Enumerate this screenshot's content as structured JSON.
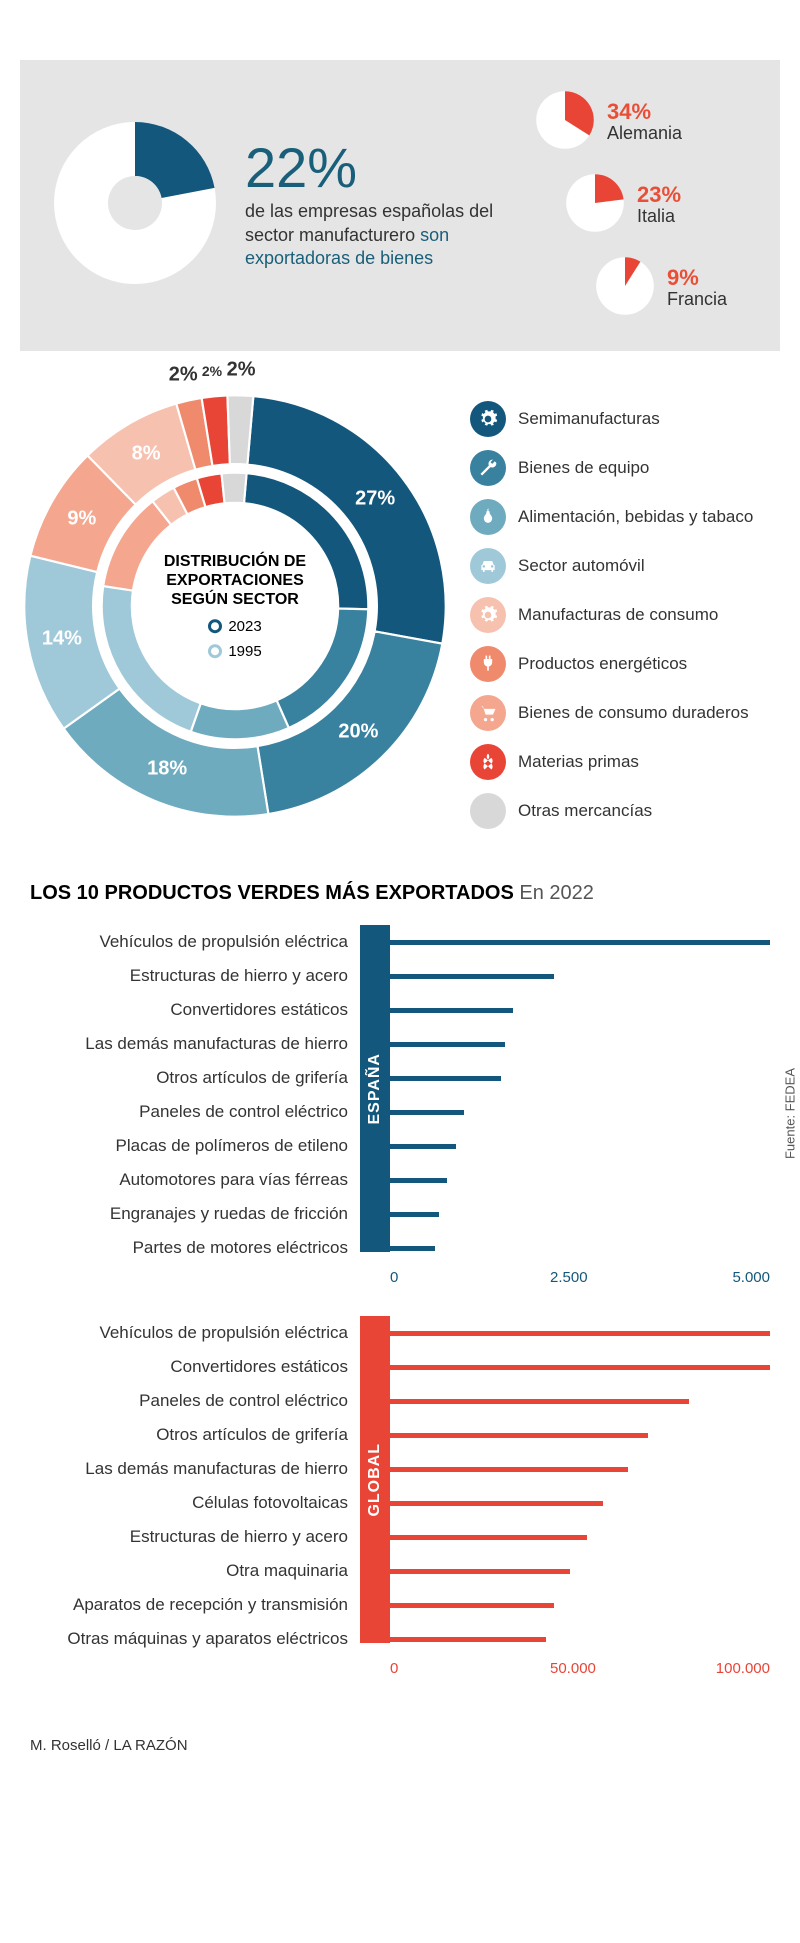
{
  "top": {
    "main_pct_value": 22,
    "main_pct_label": "22%",
    "main_text_pre": "de las empresas españolas del sector manufacturero ",
    "main_text_accent": "son exportadoras de bienes",
    "main_donut": {
      "value": 22,
      "fill": "#13587c",
      "bg": "#ffffff"
    },
    "countries": [
      {
        "pct_label": "34%",
        "value": 34,
        "name": "Alemania"
      },
      {
        "pct_label": "23%",
        "value": 23,
        "name": "Italia"
      },
      {
        "pct_label": "9%",
        "value": 9,
        "name": "Francia"
      }
    ],
    "country_fill": "#e94537",
    "country_bg": "#ffffff",
    "panel_bg": "#e5e5e5"
  },
  "donut": {
    "center_title": "DISTRIBUCIÓN DE EXPORTACIONES SEGÚN SECTOR",
    "year_outer": "2023",
    "year_inner": "1995",
    "year_outer_color": "#13587c",
    "year_inner_color": "#9fc9d9",
    "outer": [
      {
        "label": "27%",
        "value": 27,
        "color": "#13587c"
      },
      {
        "label": "20%",
        "value": 20,
        "color": "#39829f"
      },
      {
        "label": "18%",
        "value": 18,
        "color": "#6fabbf"
      },
      {
        "label": "14%",
        "value": 14,
        "color": "#9fc9d9"
      },
      {
        "label": "9%",
        "value": 9,
        "color": "#f4a68e"
      },
      {
        "label": "8%",
        "value": 8,
        "color": "#f7c1af"
      },
      {
        "label": "2%",
        "value": 2,
        "color": "#f08a6d",
        "ext": true
      },
      {
        "label": "2%",
        "value": 2,
        "color": "#e94537",
        "ext": true,
        "small": true
      },
      {
        "label": "2%",
        "value": 2,
        "color": "#d8d8d8",
        "ext": true
      }
    ],
    "inner": [
      {
        "value": 24,
        "color": "#13587c"
      },
      {
        "value": 18,
        "color": "#39829f"
      },
      {
        "value": 12,
        "color": "#6fabbf"
      },
      {
        "value": 22,
        "color": "#9fc9d9"
      },
      {
        "value": 12,
        "color": "#f4a68e"
      },
      {
        "value": 3,
        "color": "#f7c1af"
      },
      {
        "value": 3,
        "color": "#f08a6d"
      },
      {
        "value": 3,
        "color": "#e94537"
      },
      {
        "value": 3,
        "color": "#d8d8d8"
      }
    ],
    "legend": [
      {
        "name": "Semimanufacturas",
        "color": "#13587c",
        "icon": "gear"
      },
      {
        "name": "Bienes de equipo",
        "color": "#39829f",
        "icon": "wrench"
      },
      {
        "name": "Alimentación, bebidas y tabaco",
        "color": "#6fabbf",
        "icon": "pear"
      },
      {
        "name": "Sector automóvil",
        "color": "#9fc9d9",
        "icon": "car"
      },
      {
        "name": "Manufacturas de consumo",
        "color": "#f7c1af",
        "icon": "gear"
      },
      {
        "name": "Productos energéticos",
        "color": "#f08a6d",
        "icon": "plug"
      },
      {
        "name": "Bienes de consumo duraderos",
        "color": "#f4a68e",
        "icon": "cart"
      },
      {
        "name": "Materias primas",
        "color": "#e94537",
        "icon": "wheat"
      },
      {
        "name": "Otras mercancías",
        "color": "#d8d8d8",
        "icon": ""
      }
    ]
  },
  "green": {
    "title_bold": "LOS 10 PRODUCTOS VERDES MÁS EXPORTADOS",
    "title_sub": "En 2022",
    "source": "Fuente: FEDEA",
    "spain": {
      "tab_label": "ESPAÑA",
      "tab_color": "#13587c",
      "bar_color": "#13587c",
      "max": 5000,
      "ticks": [
        "0",
        "2.500",
        "5.000"
      ],
      "rows": [
        {
          "label": "Vehículos de propulsión eléctrica",
          "value": 4700
        },
        {
          "label": "Estructuras de hierro y acero",
          "value": 2000
        },
        {
          "label": "Convertidores estáticos",
          "value": 1500
        },
        {
          "label": "Las demás manufacturas de hierro",
          "value": 1400
        },
        {
          "label": "Otros artículos de grifería",
          "value": 1350
        },
        {
          "label": "Paneles de control eléctrico",
          "value": 900
        },
        {
          "label": "Placas de polímeros de etileno",
          "value": 800
        },
        {
          "label": "Automotores para vías férreas",
          "value": 700
        },
        {
          "label": "Engranajes y ruedas de fricción",
          "value": 600
        },
        {
          "label": "Partes de motores eléctricos",
          "value": 550
        }
      ]
    },
    "global": {
      "tab_label": "GLOBAL",
      "tab_color": "#e94537",
      "bar_color": "#e94537",
      "max": 100000,
      "ticks": [
        "0",
        "50.000",
        "100.000"
      ],
      "rows": [
        {
          "label": "Vehículos de propulsión eléctrica",
          "value": 105000
        },
        {
          "label": "Convertidores estáticos",
          "value": 103000
        },
        {
          "label": "Paneles de control eléctrico",
          "value": 73000
        },
        {
          "label": "Otros artículos de grifería",
          "value": 63000
        },
        {
          "label": "Las demás manufacturas de hierro",
          "value": 58000
        },
        {
          "label": "Células fotovoltaicas",
          "value": 52000
        },
        {
          "label": "Estructuras de hierro y acero",
          "value": 48000
        },
        {
          "label": "Otra maquinaria",
          "value": 44000
        },
        {
          "label": "Aparatos de recepción y transmisión",
          "value": 40000
        },
        {
          "label": "Otras máquinas y aparatos eléctricos",
          "value": 38000
        }
      ]
    }
  },
  "credit": "M. Roselló / LA RAZÓN"
}
